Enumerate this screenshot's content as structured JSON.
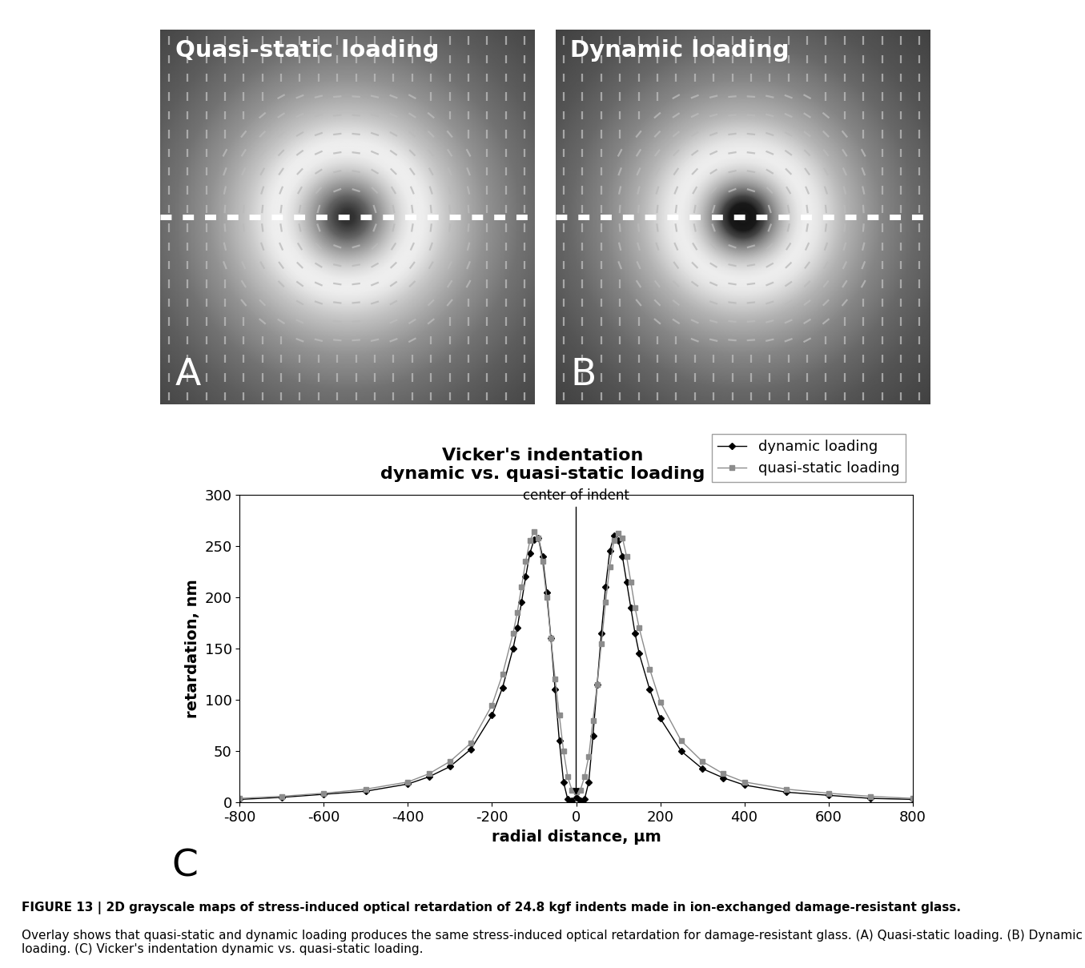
{
  "chart_data": {
    "type": "line",
    "title": "Vicker's indentation\ndynamic vs. quasi-static loading",
    "x_label": "radial distance, μm",
    "y_label": "retardation, nm",
    "panel_label": "C",
    "annotation": {
      "text": "center of indent",
      "x": 0,
      "y": 5
    },
    "x": [
      -800,
      -700,
      -600,
      -500,
      -400,
      -350,
      -300,
      -250,
      -200,
      -175,
      -150,
      -140,
      -130,
      -120,
      -110,
      -100,
      -90,
      -80,
      -70,
      -60,
      -50,
      -40,
      -30,
      -20,
      -10,
      0,
      10,
      20,
      30,
      40,
      50,
      60,
      70,
      80,
      90,
      100,
      110,
      120,
      130,
      140,
      150,
      175,
      200,
      250,
      300,
      350,
      400,
      500,
      600,
      700,
      800
    ],
    "series": [
      {
        "name": "dynamic loading",
        "color": "#000000",
        "marker": "diamond",
        "values": [
          3,
          5,
          8,
          11,
          18,
          25,
          35,
          52,
          85,
          112,
          150,
          170,
          195,
          220,
          243,
          256,
          258,
          240,
          205,
          160,
          110,
          60,
          20,
          3,
          2,
          5,
          2,
          3,
          20,
          65,
          115,
          165,
          210,
          245,
          260,
          255,
          240,
          215,
          190,
          165,
          145,
          110,
          82,
          50,
          33,
          24,
          17,
          10,
          7,
          4,
          3
        ]
      },
      {
        "name": "quasi-static loading",
        "color": "#8c8c8c",
        "marker": "square",
        "values": [
          4,
          6,
          9,
          13,
          20,
          28,
          40,
          58,
          95,
          125,
          165,
          185,
          210,
          235,
          255,
          264,
          258,
          235,
          200,
          160,
          120,
          85,
          50,
          25,
          12,
          10,
          12,
          25,
          45,
          80,
          115,
          155,
          195,
          230,
          255,
          262,
          258,
          240,
          215,
          190,
          170,
          130,
          98,
          60,
          40,
          28,
          20,
          13,
          9,
          6,
          4
        ]
      }
    ],
    "xlim": [
      -800,
      800
    ],
    "xticks": [
      -800,
      -600,
      -400,
      -200,
      0,
      200,
      400,
      600,
      800
    ],
    "ylim": [
      0,
      300
    ],
    "yticks": [
      0,
      50,
      100,
      150,
      200,
      250,
      300
    ],
    "grid": false,
    "legend": "upper right"
  },
  "images": [
    {
      "label": "A",
      "title": "Quasi-static loading",
      "series": "quasi-static loading"
    },
    {
      "label": "B",
      "title": "Dynamic loading",
      "series": "dynamic loading"
    }
  ],
  "caption": {
    "heading": "FIGURE 13 | 2D grayscale maps of stress-induced optical retardation of 24.8 kgf indents made in ion-exchanged damage-resistant glass.",
    "body": "Overlay shows that quasi-static and dynamic loading produces the same stress-induced optical retardation for damage-resistant glass. (A) Quasi-static loading. (B) Dynamic loading. (C) Vicker's indentation dynamic vs. quasi-static loading."
  }
}
